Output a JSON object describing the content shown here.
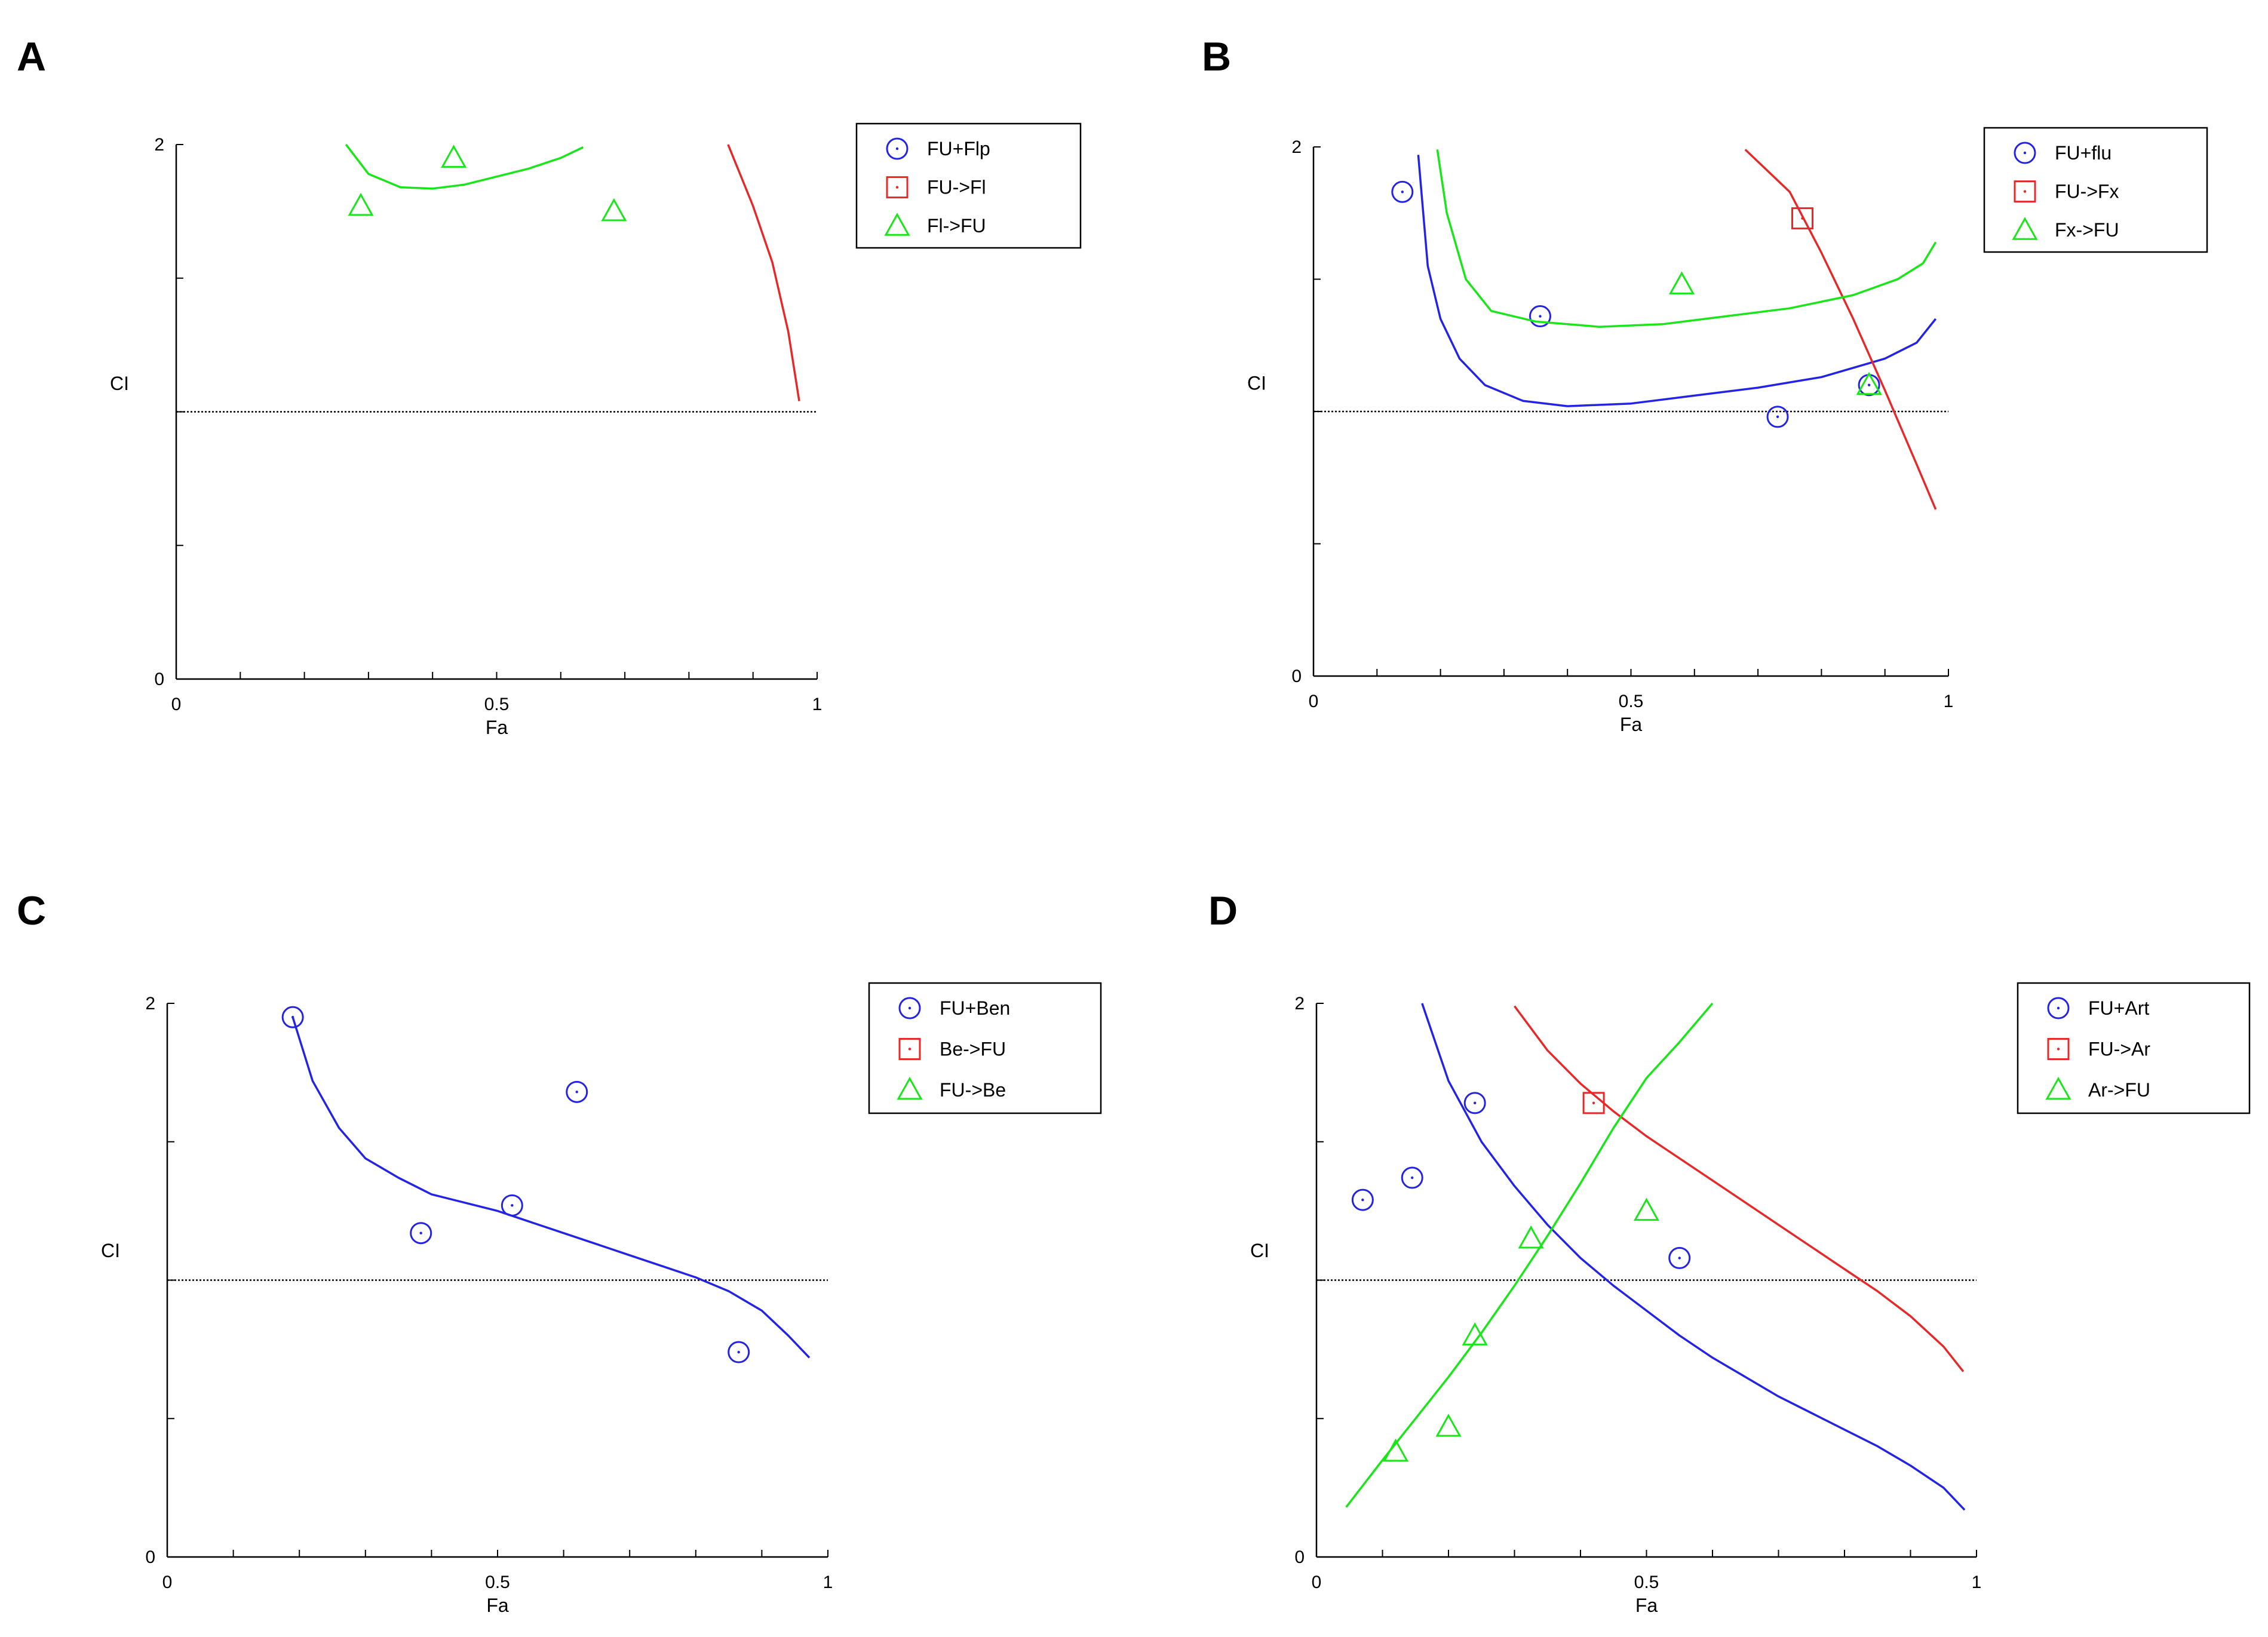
{
  "colors": {
    "series1": "#2323e6",
    "series2": "#e62828",
    "series3": "#19e619",
    "refline": "#000000"
  },
  "chart_data": [
    {
      "label": "A",
      "type": "scatter",
      "xlabel": "Fa",
      "ylabel": "CI",
      "xlim": [
        0,
        1
      ],
      "ylim": [
        0,
        2
      ],
      "xticks": [
        "0",
        "0.5",
        "1"
      ],
      "yticks": [
        "0",
        "2"
      ],
      "reference_line": 1,
      "legend": [
        "FU+Flp",
        "FU->Fl",
        "Fl->FU"
      ],
      "series": [
        {
          "name": "FU+Flp",
          "marker": "circle",
          "points": [],
          "curve": []
        },
        {
          "name": "FU->Fl",
          "marker": "square",
          "points": [],
          "curve": [
            [
              0.861,
              2.0
            ],
            [
              0.9,
              1.77
            ],
            [
              0.93,
              1.56
            ],
            [
              0.955,
              1.3
            ],
            [
              0.972,
              1.04
            ]
          ]
        },
        {
          "name": "Fl->FU",
          "marker": "triangle",
          "points": [
            [
              0.288,
              1.77
            ],
            [
              0.433,
              1.95
            ],
            [
              0.683,
              1.75
            ]
          ],
          "curve": [
            [
              0.265,
              2.0
            ],
            [
              0.3,
              1.89
            ],
            [
              0.35,
              1.84
            ],
            [
              0.4,
              1.835
            ],
            [
              0.45,
              1.85
            ],
            [
              0.5,
              1.88
            ],
            [
              0.55,
              1.91
            ],
            [
              0.6,
              1.95
            ],
            [
              0.635,
              1.99
            ]
          ]
        }
      ]
    },
    {
      "label": "B",
      "type": "scatter",
      "xlabel": "Fa",
      "ylabel": "CI",
      "xlim": [
        0,
        1
      ],
      "ylim": [
        0,
        2
      ],
      "xticks": [
        "0",
        "0.5",
        "1"
      ],
      "yticks": [
        "0",
        "2"
      ],
      "reference_line": 1,
      "legend": [
        "FU+flu",
        "FU->Fx",
        "Fx->FU"
      ],
      "series": [
        {
          "name": "FU+flu",
          "marker": "circle",
          "points": [
            [
              0.14,
              1.83
            ],
            [
              0.357,
              1.36
            ],
            [
              0.731,
              0.98
            ],
            [
              0.875,
              1.1
            ]
          ],
          "curve": [
            [
              0.165,
              1.97
            ],
            [
              0.18,
              1.55
            ],
            [
              0.2,
              1.35
            ],
            [
              0.23,
              1.2
            ],
            [
              0.27,
              1.1
            ],
            [
              0.33,
              1.04
            ],
            [
              0.4,
              1.02
            ],
            [
              0.5,
              1.03
            ],
            [
              0.6,
              1.06
            ],
            [
              0.7,
              1.09
            ],
            [
              0.8,
              1.13
            ],
            [
              0.9,
              1.2
            ],
            [
              0.95,
              1.26
            ],
            [
              0.98,
              1.35
            ]
          ]
        },
        {
          "name": "FU->Fx",
          "marker": "square",
          "points": [
            [
              0.77,
              1.73
            ]
          ],
          "curve": [
            [
              0.68,
              1.99
            ],
            [
              0.75,
              1.83
            ],
            [
              0.8,
              1.6
            ],
            [
              0.85,
              1.35
            ],
            [
              0.9,
              1.08
            ],
            [
              0.95,
              0.8
            ],
            [
              0.98,
              0.63
            ]
          ]
        },
        {
          "name": "Fx->FU",
          "marker": "triangle",
          "points": [
            [
              0.58,
              1.48
            ],
            [
              0.875,
              1.1
            ]
          ],
          "curve": [
            [
              0.195,
              1.99
            ],
            [
              0.21,
              1.75
            ],
            [
              0.24,
              1.5
            ],
            [
              0.28,
              1.38
            ],
            [
              0.35,
              1.34
            ],
            [
              0.45,
              1.32
            ],
            [
              0.55,
              1.33
            ],
            [
              0.65,
              1.36
            ],
            [
              0.75,
              1.39
            ],
            [
              0.85,
              1.44
            ],
            [
              0.92,
              1.5
            ],
            [
              0.96,
              1.56
            ],
            [
              0.98,
              1.64
            ]
          ]
        }
      ]
    },
    {
      "label": "C",
      "type": "scatter",
      "xlabel": "Fa",
      "ylabel": "CI",
      "xlim": [
        0,
        1
      ],
      "ylim": [
        0,
        2
      ],
      "xticks": [
        "0",
        "0.5",
        "1"
      ],
      "yticks": [
        "0",
        "2"
      ],
      "reference_line": 1,
      "legend": [
        "FU+Ben",
        "Be->FU",
        "FU->Be"
      ],
      "series": [
        {
          "name": "FU+Ben",
          "marker": "circle",
          "points": [
            [
              0.19,
              1.95
            ],
            [
              0.384,
              1.17
            ],
            [
              0.522,
              1.27
            ],
            [
              0.62,
              1.68
            ],
            [
              0.865,
              0.74
            ]
          ],
          "curve": [
            [
              0.19,
              1.95
            ],
            [
              0.22,
              1.72
            ],
            [
              0.26,
              1.55
            ],
            [
              0.3,
              1.44
            ],
            [
              0.35,
              1.37
            ],
            [
              0.4,
              1.31
            ],
            [
              0.45,
              1.28
            ],
            [
              0.5,
              1.25
            ],
            [
              0.55,
              1.21
            ],
            [
              0.6,
              1.17
            ],
            [
              0.65,
              1.13
            ],
            [
              0.7,
              1.09
            ],
            [
              0.75,
              1.05
            ],
            [
              0.8,
              1.01
            ],
            [
              0.85,
              0.96
            ],
            [
              0.9,
              0.89
            ],
            [
              0.94,
              0.8
            ],
            [
              0.972,
              0.72
            ]
          ]
        },
        {
          "name": "Be->FU",
          "marker": "square",
          "points": [],
          "curve": []
        },
        {
          "name": "FU->Be",
          "marker": "triangle",
          "points": [],
          "curve": []
        }
      ]
    },
    {
      "label": "D",
      "type": "scatter",
      "xlabel": "Fa",
      "ylabel": "CI",
      "xlim": [
        0,
        1
      ],
      "ylim": [
        0,
        2
      ],
      "xticks": [
        "0",
        "0.5",
        "1"
      ],
      "yticks": [
        "0",
        "2"
      ],
      "reference_line": 1,
      "legend": [
        "FU+Art",
        "FU->Ar",
        "Ar->FU"
      ],
      "series": [
        {
          "name": "FU+Art",
          "marker": "circle",
          "points": [
            [
              0.07,
              1.29
            ],
            [
              0.145,
              1.37
            ],
            [
              0.24,
              1.64
            ],
            [
              0.55,
              1.08
            ]
          ],
          "curve": [
            [
              0.16,
              2.0
            ],
            [
              0.2,
              1.72
            ],
            [
              0.25,
              1.5
            ],
            [
              0.3,
              1.34
            ],
            [
              0.35,
              1.2
            ],
            [
              0.4,
              1.08
            ],
            [
              0.45,
              0.98
            ],
            [
              0.5,
              0.89
            ],
            [
              0.55,
              0.8
            ],
            [
              0.6,
              0.72
            ],
            [
              0.65,
              0.65
            ],
            [
              0.7,
              0.58
            ],
            [
              0.75,
              0.52
            ],
            [
              0.8,
              0.46
            ],
            [
              0.85,
              0.4
            ],
            [
              0.9,
              0.33
            ],
            [
              0.95,
              0.25
            ],
            [
              0.982,
              0.17
            ]
          ]
        },
        {
          "name": "FU->Ar",
          "marker": "square",
          "points": [
            [
              0.42,
              1.64
            ]
          ],
          "curve": [
            [
              0.3,
              1.99
            ],
            [
              0.35,
              1.83
            ],
            [
              0.4,
              1.71
            ],
            [
              0.45,
              1.61
            ],
            [
              0.5,
              1.52
            ],
            [
              0.55,
              1.44
            ],
            [
              0.6,
              1.36
            ],
            [
              0.65,
              1.28
            ],
            [
              0.7,
              1.2
            ],
            [
              0.75,
              1.12
            ],
            [
              0.8,
              1.04
            ],
            [
              0.85,
              0.96
            ],
            [
              0.9,
              0.87
            ],
            [
              0.95,
              0.76
            ],
            [
              0.98,
              0.67
            ]
          ]
        },
        {
          "name": "Ar->FU",
          "marker": "triangle",
          "points": [
            [
              0.12,
              0.38
            ],
            [
              0.2,
              0.47
            ],
            [
              0.24,
              0.8
            ],
            [
              0.325,
              1.15
            ],
            [
              0.5,
              1.25
            ]
          ],
          "curve": [
            [
              0.045,
              0.18
            ],
            [
              0.1,
              0.35
            ],
            [
              0.15,
              0.5
            ],
            [
              0.2,
              0.65
            ],
            [
              0.25,
              0.81
            ],
            [
              0.3,
              0.98
            ],
            [
              0.35,
              1.16
            ],
            [
              0.4,
              1.35
            ],
            [
              0.45,
              1.55
            ],
            [
              0.5,
              1.73
            ],
            [
              0.55,
              1.86
            ],
            [
              0.6,
              2.0
            ]
          ]
        }
      ]
    }
  ]
}
